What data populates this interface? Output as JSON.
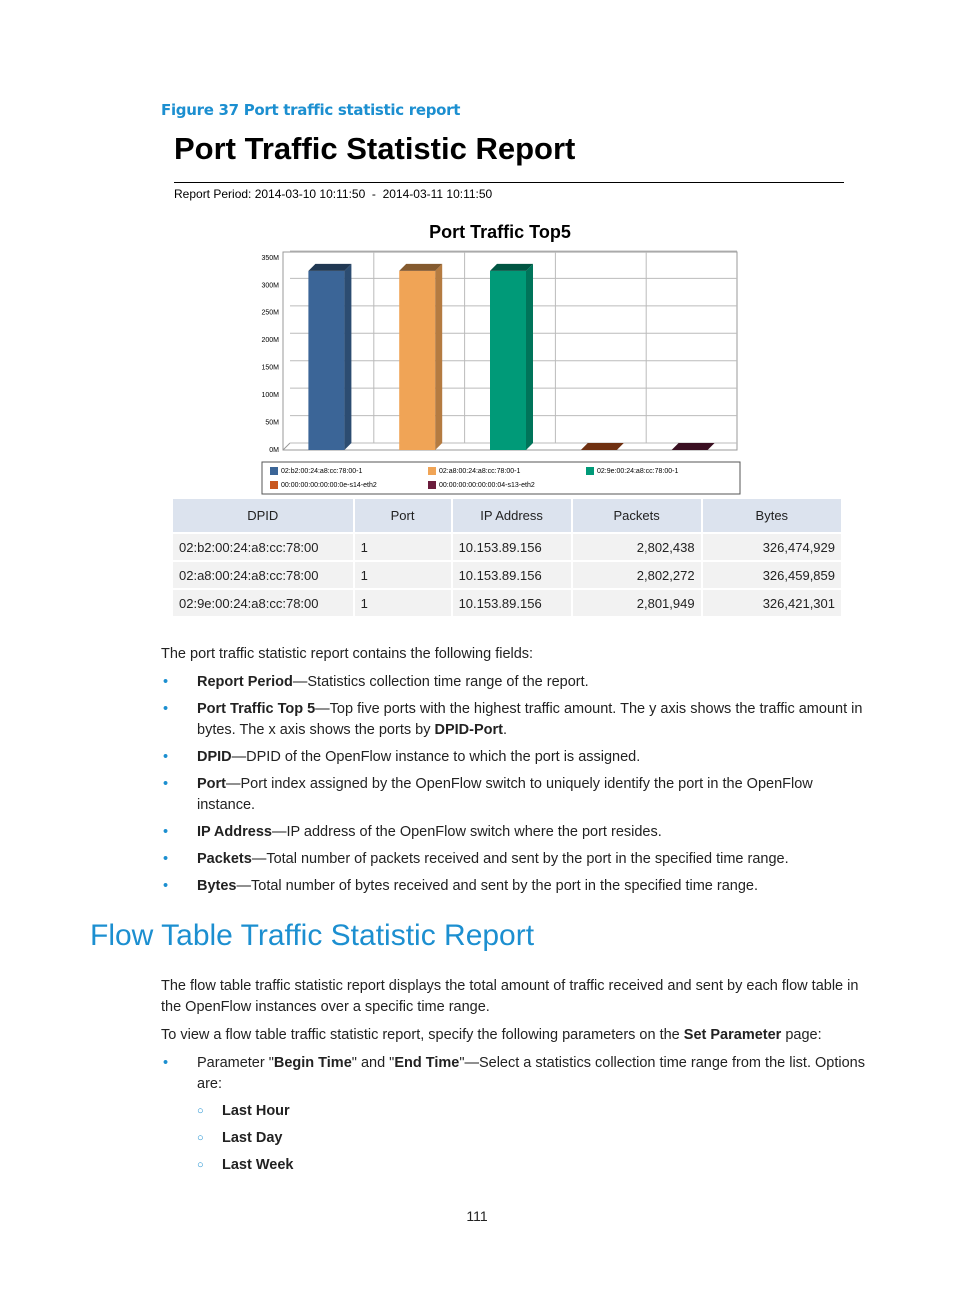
{
  "figure_caption": "Figure 37 Port traffic statistic report",
  "report": {
    "title": "Port Traffic Statistic Report",
    "period": "Report Period: 2014-03-10 10:11:50  -  2014-03-11 10:11:50"
  },
  "chart_data": {
    "type": "bar3d",
    "title": "Port Traffic Top5",
    "categories": [
      "02:b2:00:24:a8:cc:78:00-1",
      "02:a8:00:24:a8:cc:78:00-1",
      "02:9e:00:24:a8:cc:78:00-1",
      "00:00:00:00:00:00:0e-s14-eth2",
      "00:00:00:00:00:00:04-s13-eth2"
    ],
    "values": [
      326.474929,
      326.459859,
      326.421301,
      0,
      0
    ],
    "colors": [
      "#3b6597",
      "#f0a456",
      "#009a78",
      "#c9571f",
      "#6a1c3c"
    ],
    "ylim": [
      0,
      350
    ],
    "yticks": [
      {
        "value": 0,
        "label": "0M"
      },
      {
        "value": 50,
        "label": "50M"
      },
      {
        "value": 100,
        "label": "100M"
      },
      {
        "value": 150,
        "label": "150M"
      },
      {
        "value": 200,
        "label": "200M"
      },
      {
        "value": 250,
        "label": "250M"
      },
      {
        "value": 300,
        "label": "300M"
      },
      {
        "value": 350,
        "label": "350M"
      }
    ],
    "grid": true
  },
  "table": {
    "header": [
      "DPID",
      "Port",
      "IP  Address",
      "Packets",
      "Bytes"
    ],
    "rows": [
      [
        "02:b2:00:24:a8:cc:78:00",
        "1",
        "10.153.89.156",
        "2,802,438",
        "326,474,929"
      ],
      [
        "02:a8:00:24:a8:cc:78:00",
        "1",
        "10.153.89.156",
        "2,802,272",
        "326,459,859"
      ],
      [
        "02:9e:00:24:a8:cc:78:00",
        "1",
        "10.153.89.156",
        "2,801,949",
        "326,421,301"
      ]
    ]
  },
  "intro": "The port traffic statistic report contains the following fields:",
  "fields": [
    [
      {
        "text": "Report Period",
        "bold": true
      },
      {
        "text": "—Statistics collection time range of the report.",
        "bold": false
      }
    ],
    [
      {
        "text": "Port Traffic Top 5",
        "bold": true
      },
      {
        "text": "—Top five ports with the highest traffic amount. The y axis shows the traffic amount in bytes. The x axis shows the ports by ",
        "bold": false
      },
      {
        "text": "DPID-Port",
        "bold": true
      },
      {
        "text": ".",
        "bold": false
      }
    ],
    [
      {
        "text": "DPID",
        "bold": true
      },
      {
        "text": "—DPID of the OpenFlow instance to which the port is assigned.",
        "bold": false
      }
    ],
    [
      {
        "text": "Port",
        "bold": true
      },
      {
        "text": "—Port index assigned by the OpenFlow switch to uniquely identify the port in the OpenFlow instance.",
        "bold": false
      }
    ],
    [
      {
        "text": "IP Address",
        "bold": true
      },
      {
        "text": "—IP address of the OpenFlow switch where the port resides.",
        "bold": false
      }
    ],
    [
      {
        "text": "Packets",
        "bold": true
      },
      {
        "text": "—Total number of packets received and sent by the port in the specified time range.",
        "bold": false
      }
    ],
    [
      {
        "text": "Bytes",
        "bold": true
      },
      {
        "text": "—Total number of bytes received and sent by the port in the specified time range.",
        "bold": false
      }
    ]
  ],
  "section": {
    "heading": "Flow Table Traffic Statistic Report",
    "paragraphs": [
      "The flow table traffic statistic report displays the total amount of traffic received and sent by each flow table in the OpenFlow instances over a specific time range."
    ],
    "lead": [
      {
        "text": "To view a flow table traffic statistic report, specify the following parameters on the ",
        "bold": false
      },
      {
        "text": "Set Parameter",
        "bold": true
      },
      {
        "text": " page:",
        "bold": false
      }
    ],
    "bullet": [
      {
        "text": "Parameter \"",
        "bold": false
      },
      {
        "text": "Begin Time",
        "bold": true
      },
      {
        "text": "\" and \"",
        "bold": false
      },
      {
        "text": "End Time",
        "bold": true
      },
      {
        "text": "\"—Select a statistics collection time range from the list. Options are:",
        "bold": false
      }
    ],
    "options": [
      "Last Hour",
      "Last Day",
      "Last Week"
    ]
  },
  "page_number": "111"
}
